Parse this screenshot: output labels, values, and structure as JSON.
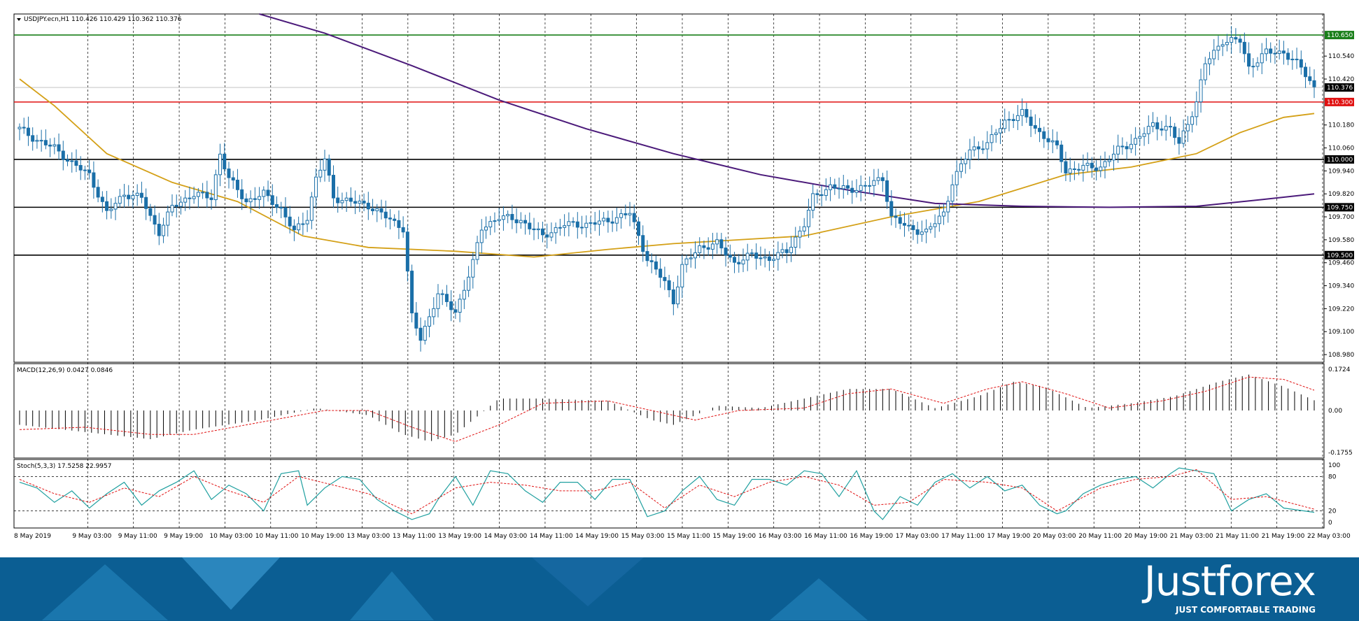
{
  "header": {
    "label": "USDJPY.ecn,H1  110.426 110.429 110.362 110.376"
  },
  "price_axis": {
    "ticks": [
      "110.540",
      "110.420",
      "110.180",
      "110.060",
      "109.940",
      "109.820",
      "109.700",
      "109.580",
      "109.460",
      "109.340",
      "109.220",
      "109.100",
      "108.980"
    ],
    "tags": [
      {
        "label": "110.650",
        "color": "#1a7f1a"
      },
      {
        "label": "110.376",
        "color": "#000000"
      },
      {
        "label": "110.300",
        "color": "#e01010"
      },
      {
        "label": "110.000",
        "color": "#000000"
      },
      {
        "label": "109.750",
        "color": "#000000"
      },
      {
        "label": "109.500",
        "color": "#000000"
      }
    ]
  },
  "macd": {
    "label": "MACD(12,26,9) 0.0427 0.0846",
    "ticks": [
      "0.1724",
      "0.00",
      "-0.1755"
    ]
  },
  "stoch": {
    "label": "Stoch(5,3,3) 17.5258 22.9957",
    "ticks": [
      "100",
      "80",
      "20",
      "0"
    ]
  },
  "time_axis": [
    "8 May 2019",
    "9 May 03:00",
    "9 May 11:00",
    "9 May 19:00",
    "10 May 03:00",
    "10 May 11:00",
    "10 May 19:00",
    "13 May 03:00",
    "13 May 11:00",
    "13 May 19:00",
    "14 May 03:00",
    "14 May 11:00",
    "14 May 19:00",
    "15 May 03:00",
    "15 May 11:00",
    "15 May 19:00",
    "16 May 03:00",
    "16 May 11:00",
    "16 May 19:00",
    "17 May 03:00",
    "17 May 11:00",
    "17 May 19:00",
    "20 May 03:00",
    "20 May 11:00",
    "20 May 19:00",
    "21 May 03:00",
    "21 May 11:00",
    "21 May 19:00",
    "22 May 03:00"
  ],
  "brand": {
    "logo": "Justforex",
    "tagline": "JUST COMFORTABLE TRADING"
  },
  "colors": {
    "candle": "#1a6fa8",
    "ma_fast": "#d4a017",
    "ma_slow": "#4b1a7a",
    "resistance": "#1a7f1a",
    "level_red": "#e01010",
    "level": "#000000",
    "macd_signal": "#e01010",
    "stoch_main": "#20a0a0",
    "stoch_signal": "#e01010"
  },
  "chart_data": {
    "type": "candlestick",
    "symbol": "USDJPY.ecn",
    "timeframe": "H1",
    "ohlc_last": {
      "open": 110.426,
      "high": 110.429,
      "low": 110.362,
      "close": 110.376
    },
    "ylim": [
      108.94,
      110.76
    ],
    "horizontal_levels": [
      {
        "price": 110.65,
        "color": "#1a7f1a"
      },
      {
        "price": 110.3,
        "color": "#e01010"
      },
      {
        "price": 110.0,
        "color": "#000000"
      },
      {
        "price": 109.75,
        "color": "#000000"
      },
      {
        "price": 109.5,
        "color": "#000000"
      }
    ],
    "ma_fast": [
      [
        0,
        110.42
      ],
      [
        8,
        110.28
      ],
      [
        20,
        110.03
      ],
      [
        35,
        109.88
      ],
      [
        50,
        109.78
      ],
      [
        65,
        109.6
      ],
      [
        80,
        109.54
      ],
      [
        100,
        109.52
      ],
      [
        118,
        109.49
      ],
      [
        135,
        109.53
      ],
      [
        150,
        109.56
      ],
      [
        165,
        109.58
      ],
      [
        180,
        109.6
      ],
      [
        200,
        109.7
      ],
      [
        220,
        109.78
      ],
      [
        240,
        109.92
      ],
      [
        255,
        109.96
      ],
      [
        270,
        110.03
      ],
      [
        280,
        110.14
      ],
      [
        290,
        110.22
      ],
      [
        297,
        110.24
      ]
    ],
    "ma_slow": [
      [
        55,
        110.76
      ],
      [
        70,
        110.66
      ],
      [
        90,
        110.49
      ],
      [
        110,
        110.31
      ],
      [
        130,
        110.16
      ],
      [
        150,
        110.03
      ],
      [
        170,
        109.92
      ],
      [
        190,
        109.84
      ],
      [
        210,
        109.77
      ],
      [
        230,
        109.755
      ],
      [
        250,
        109.75
      ],
      [
        270,
        109.755
      ],
      [
        285,
        109.79
      ],
      [
        297,
        109.82
      ]
    ],
    "candles": [
      [
        0,
        110.16
      ],
      [
        4,
        110.1
      ],
      [
        8,
        110.06
      ],
      [
        12,
        109.98
      ],
      [
        16,
        109.92
      ],
      [
        20,
        109.72
      ],
      [
        24,
        109.82
      ],
      [
        28,
        109.8
      ],
      [
        30,
        109.7
      ],
      [
        32,
        109.62
      ],
      [
        35,
        109.75
      ],
      [
        40,
        109.82
      ],
      [
        44,
        109.8
      ],
      [
        46,
        110.03
      ],
      [
        48,
        109.9
      ],
      [
        52,
        109.78
      ],
      [
        56,
        109.82
      ],
      [
        60,
        109.74
      ],
      [
        63,
        109.62
      ],
      [
        66,
        109.7
      ],
      [
        68,
        109.9
      ],
      [
        70,
        110.0
      ],
      [
        72,
        109.8
      ],
      [
        76,
        109.78
      ],
      [
        80,
        109.76
      ],
      [
        84,
        109.7
      ],
      [
        88,
        109.64
      ],
      [
        90,
        109.18
      ],
      [
        92,
        109.06
      ],
      [
        96,
        109.3
      ],
      [
        100,
        109.2
      ],
      [
        104,
        109.46
      ],
      [
        106,
        109.64
      ],
      [
        110,
        109.7
      ],
      [
        115,
        109.68
      ],
      [
        120,
        109.6
      ],
      [
        125,
        109.66
      ],
      [
        130,
        109.66
      ],
      [
        135,
        109.68
      ],
      [
        140,
        109.72
      ],
      [
        144,
        109.48
      ],
      [
        148,
        109.36
      ],
      [
        150,
        109.26
      ],
      [
        152,
        109.44
      ],
      [
        156,
        109.54
      ],
      [
        160,
        109.56
      ],
      [
        164,
        109.46
      ],
      [
        168,
        109.5
      ],
      [
        172,
        109.48
      ],
      [
        176,
        109.52
      ],
      [
        180,
        109.66
      ],
      [
        182,
        109.8
      ],
      [
        186,
        109.86
      ],
      [
        190,
        109.84
      ],
      [
        194,
        109.86
      ],
      [
        198,
        109.9
      ],
      [
        200,
        109.7
      ],
      [
        204,
        109.64
      ],
      [
        208,
        109.62
      ],
      [
        212,
        109.72
      ],
      [
        214,
        109.88
      ],
      [
        218,
        110.05
      ],
      [
        222,
        110.08
      ],
      [
        226,
        110.2
      ],
      [
        230,
        110.24
      ],
      [
        234,
        110.14
      ],
      [
        238,
        110.06
      ],
      [
        240,
        109.94
      ],
      [
        244,
        109.96
      ],
      [
        248,
        109.96
      ],
      [
        252,
        110.05
      ],
      [
        256,
        110.1
      ],
      [
        260,
        110.18
      ],
      [
        264,
        110.16
      ],
      [
        266,
        110.08
      ],
      [
        270,
        110.3
      ],
      [
        272,
        110.5
      ],
      [
        276,
        110.62
      ],
      [
        280,
        110.62
      ],
      [
        282,
        110.48
      ],
      [
        286,
        110.56
      ],
      [
        290,
        110.56
      ],
      [
        294,
        110.48
      ],
      [
        297,
        110.376
      ]
    ],
    "macd": {
      "ylim": [
        -0.1755,
        0.1724
      ],
      "histogram": [
        [
          0,
          -0.06
        ],
        [
          20,
          -0.1
        ],
        [
          30,
          -0.12
        ],
        [
          40,
          -0.08
        ],
        [
          55,
          -0.04
        ],
        [
          68,
          0.01
        ],
        [
          80,
          -0.02
        ],
        [
          88,
          -0.1
        ],
        [
          94,
          -0.13
        ],
        [
          100,
          -0.1
        ],
        [
          110,
          0.05
        ],
        [
          120,
          0.05
        ],
        [
          135,
          0.04
        ],
        [
          145,
          -0.04
        ],
        [
          150,
          -0.06
        ],
        [
          160,
          0.02
        ],
        [
          170,
          0.01
        ],
        [
          180,
          0.05
        ],
        [
          190,
          0.09
        ],
        [
          200,
          0.09
        ],
        [
          210,
          0.01
        ],
        [
          220,
          0.06
        ],
        [
          228,
          0.12
        ],
        [
          235,
          0.1
        ],
        [
          245,
          0.01
        ],
        [
          255,
          0.03
        ],
        [
          265,
          0.06
        ],
        [
          275,
          0.12
        ],
        [
          282,
          0.15
        ],
        [
          290,
          0.1
        ],
        [
          297,
          0.0427
        ]
      ],
      "signal": [
        [
          0,
          -0.08
        ],
        [
          15,
          -0.07
        ],
        [
          30,
          -0.1
        ],
        [
          40,
          -0.1
        ],
        [
          55,
          -0.05
        ],
        [
          70,
          0.0
        ],
        [
          80,
          0.0
        ],
        [
          90,
          -0.07
        ],
        [
          100,
          -0.13
        ],
        [
          110,
          -0.06
        ],
        [
          120,
          0.03
        ],
        [
          135,
          0.04
        ],
        [
          145,
          0.0
        ],
        [
          155,
          -0.04
        ],
        [
          165,
          0.0
        ],
        [
          180,
          0.01
        ],
        [
          190,
          0.07
        ],
        [
          200,
          0.09
        ],
        [
          212,
          0.03
        ],
        [
          222,
          0.09
        ],
        [
          230,
          0.12
        ],
        [
          240,
          0.07
        ],
        [
          250,
          0.01
        ],
        [
          262,
          0.04
        ],
        [
          272,
          0.08
        ],
        [
          282,
          0.14
        ],
        [
          290,
          0.13
        ],
        [
          297,
          0.0846
        ]
      ]
    },
    "stochastic": {
      "ylim": [
        0,
        100
      ],
      "levels": [
        80,
        20
      ],
      "k": [
        [
          0,
          70
        ],
        [
          4,
          60
        ],
        [
          8,
          35
        ],
        [
          12,
          55
        ],
        [
          16,
          25
        ],
        [
          20,
          50
        ],
        [
          24,
          70
        ],
        [
          28,
          30
        ],
        [
          32,
          55
        ],
        [
          36,
          70
        ],
        [
          40,
          90
        ],
        [
          44,
          40
        ],
        [
          48,
          65
        ],
        [
          52,
          50
        ],
        [
          56,
          20
        ],
        [
          60,
          85
        ],
        [
          64,
          90
        ],
        [
          66,
          30
        ],
        [
          70,
          60
        ],
        [
          74,
          80
        ],
        [
          78,
          75
        ],
        [
          82,
          40
        ],
        [
          86,
          20
        ],
        [
          90,
          5
        ],
        [
          94,
          15
        ],
        [
          96,
          40
        ],
        [
          100,
          80
        ],
        [
          104,
          30
        ],
        [
          108,
          90
        ],
        [
          112,
          85
        ],
        [
          116,
          55
        ],
        [
          120,
          35
        ],
        [
          124,
          70
        ],
        [
          128,
          70
        ],
        [
          132,
          40
        ],
        [
          136,
          75
        ],
        [
          140,
          75
        ],
        [
          144,
          10
        ],
        [
          148,
          20
        ],
        [
          152,
          55
        ],
        [
          156,
          80
        ],
        [
          160,
          40
        ],
        [
          164,
          30
        ],
        [
          168,
          75
        ],
        [
          172,
          75
        ],
        [
          176,
          65
        ],
        [
          180,
          90
        ],
        [
          184,
          85
        ],
        [
          188,
          45
        ],
        [
          192,
          90
        ],
        [
          196,
          20
        ],
        [
          198,
          5
        ],
        [
          202,
          45
        ],
        [
          206,
          30
        ],
        [
          210,
          70
        ],
        [
          214,
          85
        ],
        [
          218,
          60
        ],
        [
          222,
          80
        ],
        [
          226,
          55
        ],
        [
          230,
          65
        ],
        [
          234,
          30
        ],
        [
          238,
          15
        ],
        [
          240,
          20
        ],
        [
          244,
          50
        ],
        [
          248,
          65
        ],
        [
          252,
          75
        ],
        [
          256,
          80
        ],
        [
          260,
          60
        ],
        [
          264,
          85
        ],
        [
          266,
          95
        ],
        [
          270,
          90
        ],
        [
          274,
          85
        ],
        [
          278,
          20
        ],
        [
          282,
          40
        ],
        [
          286,
          50
        ],
        [
          290,
          25
        ],
        [
          297,
          17.5
        ]
      ],
      "d": [
        [
          0,
          75
        ],
        [
          8,
          50
        ],
        [
          16,
          35
        ],
        [
          24,
          60
        ],
        [
          32,
          45
        ],
        [
          40,
          80
        ],
        [
          48,
          55
        ],
        [
          56,
          35
        ],
        [
          64,
          80
        ],
        [
          72,
          65
        ],
        [
          80,
          50
        ],
        [
          90,
          15
        ],
        [
          100,
          60
        ],
        [
          108,
          70
        ],
        [
          116,
          65
        ],
        [
          124,
          55
        ],
        [
          132,
          55
        ],
        [
          140,
          70
        ],
        [
          148,
          25
        ],
        [
          156,
          65
        ],
        [
          164,
          45
        ],
        [
          172,
          70
        ],
        [
          180,
          80
        ],
        [
          188,
          65
        ],
        [
          196,
          30
        ],
        [
          204,
          35
        ],
        [
          212,
          75
        ],
        [
          222,
          70
        ],
        [
          230,
          60
        ],
        [
          238,
          20
        ],
        [
          248,
          60
        ],
        [
          256,
          75
        ],
        [
          264,
          80
        ],
        [
          270,
          92
        ],
        [
          278,
          40
        ],
        [
          286,
          45
        ],
        [
          297,
          23
        ]
      ]
    }
  }
}
